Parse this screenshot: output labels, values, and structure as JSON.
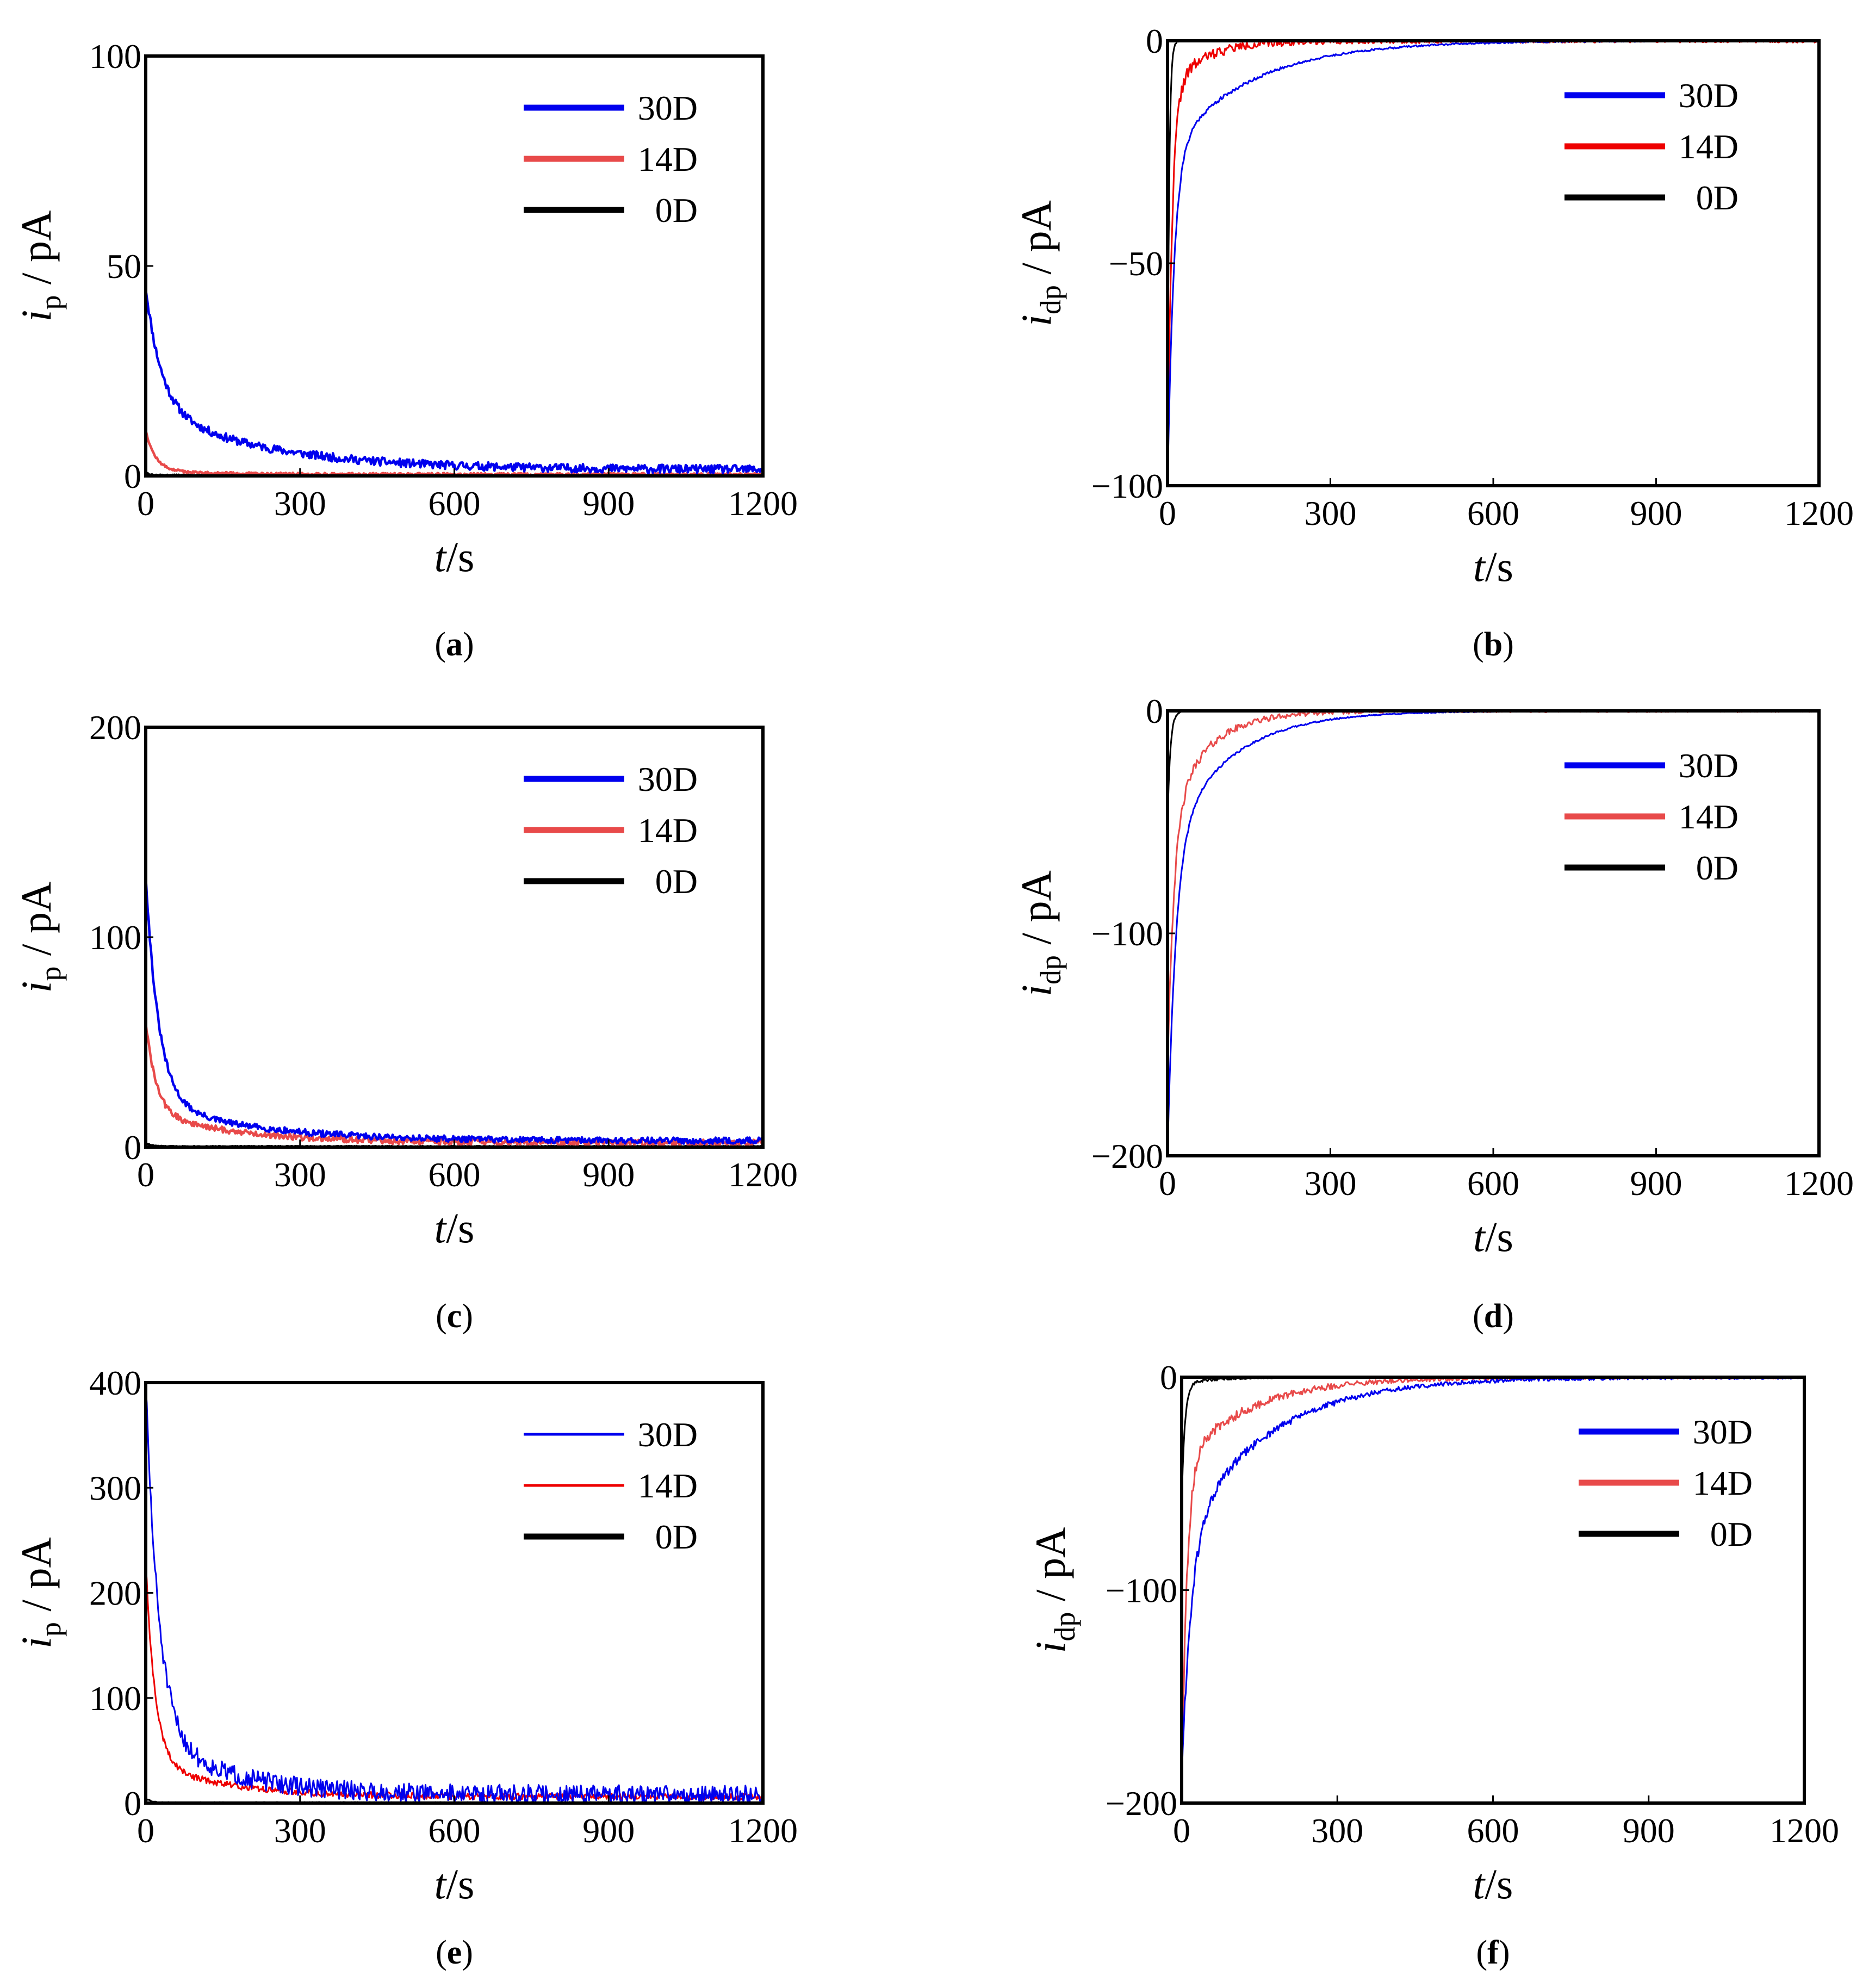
{
  "figure": {
    "panels": [
      "a",
      "b",
      "c",
      "d",
      "e",
      "f"
    ]
  },
  "chart_data": [
    {
      "id": "a",
      "caption_letter": "a",
      "type": "line",
      "kind": "polarization",
      "ylabel_main": "i",
      "ylabel_sub": "p",
      "ylabel_unit": " / pA",
      "xlabel_main": "t",
      "xlabel_unit": "/s",
      "xlim": [
        0,
        1200
      ],
      "ylim": [
        0,
        100
      ],
      "xticks": [
        0,
        300,
        600,
        900,
        1200
      ],
      "yticks": [
        0,
        50,
        100
      ],
      "ytick_labels": [
        "0",
        "50",
        "100"
      ],
      "legend_position": "top-right",
      "series": [
        {
          "name": "30D",
          "color": "#0000ee",
          "i0": 45,
          "tau1": 30,
          "frac1": 0.65,
          "tau2": 220,
          "i_end": 1.5,
          "noise": 1.0,
          "seed": 11
        },
        {
          "name": "14D",
          "color": "#e84a4a",
          "i0": 11,
          "tau1": 18,
          "frac1": 0.9,
          "tau2": 100,
          "i_end": 0.4,
          "noise": 0.3,
          "seed": 12
        },
        {
          "name": "0D",
          "color": "#000000",
          "i0": 1,
          "tau1": 5,
          "frac1": 1,
          "tau2": 10,
          "i_end": 0.2,
          "noise": 0.1,
          "seed": 13
        }
      ]
    },
    {
      "id": "b",
      "caption_letter": "b",
      "type": "line",
      "kind": "depolarization",
      "ylabel_main": "i",
      "ylabel_sub": "dp",
      "ylabel_unit": " / pA",
      "xlabel_main": "t",
      "xlabel_unit": "/s",
      "xlim": [
        0,
        1200
      ],
      "ylim": [
        -100,
        0
      ],
      "xticks": [
        0,
        300,
        600,
        900,
        1200
      ],
      "yticks": [
        -100,
        -50,
        0
      ],
      "ytick_labels": [
        "−100",
        "−50",
        "0"
      ],
      "legend_position": "top-right",
      "series": [
        {
          "name": "30D",
          "color": "#0000ee",
          "i0": -100,
          "tau1": 12,
          "frac1": 0.75,
          "tau2": 150,
          "i_end": 0,
          "noise": 0.15,
          "seed": 21
        },
        {
          "name": "14D",
          "color": "#ee0000",
          "i0": -100,
          "tau1": 8,
          "frac1": 0.88,
          "tau2": 60,
          "i_end": 0,
          "noise": 0.4,
          "seed": 22
        },
        {
          "name": "0D",
          "color": "#000000",
          "i0": -90,
          "tau1": 3,
          "frac1": 1,
          "tau2": 10,
          "i_end": 0,
          "noise": 0.05,
          "seed": 23
        }
      ]
    },
    {
      "id": "c",
      "caption_letter": "c",
      "type": "line",
      "kind": "polarization",
      "ylabel_main": "i",
      "ylabel_sub": "p",
      "ylabel_unit": " / pA",
      "xlabel_main": "t",
      "xlabel_unit": "/s",
      "xlim": [
        0,
        1200
      ],
      "ylim": [
        0,
        200
      ],
      "xticks": [
        0,
        300,
        600,
        900,
        1200
      ],
      "yticks": [
        0,
        100,
        200
      ],
      "ytick_labels": [
        "0",
        "100",
        "200"
      ],
      "legend_position": "top-right",
      "series": [
        {
          "name": "30D",
          "color": "#0000ee",
          "i0": 130,
          "tau1": 25,
          "frac1": 0.85,
          "tau2": 200,
          "i_end": 3,
          "noise": 1.5,
          "seed": 31
        },
        {
          "name": "14D",
          "color": "#e84a4a",
          "i0": 60,
          "tau1": 20,
          "frac1": 0.75,
          "tau2": 180,
          "i_end": 2,
          "noise": 1.5,
          "seed": 32
        },
        {
          "name": "0D",
          "color": "#000000",
          "i0": 2,
          "tau1": 10,
          "frac1": 1,
          "tau2": 10,
          "i_end": 0.3,
          "noise": 0.2,
          "seed": 33
        }
      ]
    },
    {
      "id": "d",
      "caption_letter": "d",
      "type": "line",
      "kind": "depolarization",
      "ylabel_main": "i",
      "ylabel_sub": "dp",
      "ylabel_unit": " / pA",
      "xlabel_main": "t",
      "xlabel_unit": "/s",
      "xlim": [
        0,
        1200
      ],
      "ylim": [
        -200,
        0
      ],
      "xticks": [
        0,
        300,
        600,
        900,
        1200
      ],
      "yticks": [
        -200,
        -100,
        0
      ],
      "ytick_labels": [
        "−200",
        "−100",
        "0"
      ],
      "legend_position": "top-right",
      "series": [
        {
          "name": "30D",
          "color": "#0000ee",
          "i0": -200,
          "tau1": 15,
          "frac1": 0.7,
          "tau2": 110,
          "i_end": 0,
          "noise": 0.2,
          "seed": 41
        },
        {
          "name": "14D",
          "color": "#e84a4a",
          "i0": -160,
          "tau1": 12,
          "frac1": 0.7,
          "tau2": 70,
          "i_end": 0,
          "noise": 0.6,
          "seed": 42
        },
        {
          "name": "0D",
          "color": "#000000",
          "i0": -50,
          "tau1": 5,
          "frac1": 1,
          "tau2": 10,
          "i_end": 0,
          "noise": 0.1,
          "seed": 43
        }
      ]
    },
    {
      "id": "e",
      "caption_letter": "e",
      "type": "line",
      "kind": "polarization",
      "ylabel_main": "i",
      "ylabel_sub": "p",
      "ylabel_unit": " / pA",
      "xlabel_main": "t",
      "xlabel_unit": "/s",
      "xlim": [
        0,
        1200
      ],
      "ylim": [
        0,
        400
      ],
      "xticks": [
        0,
        300,
        600,
        900,
        1200
      ],
      "yticks": [
        0,
        100,
        200,
        300,
        400
      ],
      "ytick_labels": [
        "0",
        "100",
        "200",
        "300",
        "400"
      ],
      "legend_position": "top-right",
      "series": [
        {
          "name": "30D",
          "color": "#0000ee",
          "i0": 400,
          "tau1": 25,
          "frac1": 0.85,
          "tau2": 150,
          "i_end": 8,
          "noise": 9,
          "seed": 51
        },
        {
          "name": "14D",
          "color": "#ee0000",
          "i0": 230,
          "tau1": 18,
          "frac1": 0.85,
          "tau2": 150,
          "i_end": 6,
          "noise": 3,
          "seed": 52
        },
        {
          "name": "0D",
          "color": "#000000",
          "i0": 5,
          "tau1": 10,
          "frac1": 1,
          "tau2": 10,
          "i_end": 0.5,
          "noise": 0.5,
          "seed": 53
        }
      ]
    },
    {
      "id": "f",
      "caption_letter": "f",
      "type": "line",
      "kind": "depolarization",
      "ylabel_main": "i",
      "ylabel_sub": "dp",
      "ylabel_unit": " / pA",
      "xlabel_main": "t",
      "xlabel_unit": "/s",
      "xlim": [
        0,
        1200
      ],
      "ylim": [
        -200,
        0
      ],
      "xticks": [
        0,
        300,
        600,
        900,
        1200
      ],
      "yticks": [
        -200,
        -100,
        0
      ],
      "ytick_labels": [
        "−200",
        "−100",
        "0"
      ],
      "legend_position": "top-right",
      "series": [
        {
          "name": "30D",
          "color": "#0000ee",
          "i0": -190,
          "tau1": 18,
          "frac1": 0.6,
          "tau2": 160,
          "i_end": 0,
          "noise": 0.8,
          "seed": 61
        },
        {
          "name": "14D",
          "color": "#e84a4a",
          "i0": -200,
          "tau1": 10,
          "frac1": 0.8,
          "tau2": 130,
          "i_end": 0,
          "noise": 0.8,
          "seed": 62
        },
        {
          "name": "0D",
          "color": "#000000",
          "i0": -60,
          "tau1": 6,
          "frac1": 0.95,
          "tau2": 60,
          "i_end": 0,
          "noise": 0.2,
          "seed": 63
        }
      ]
    }
  ]
}
